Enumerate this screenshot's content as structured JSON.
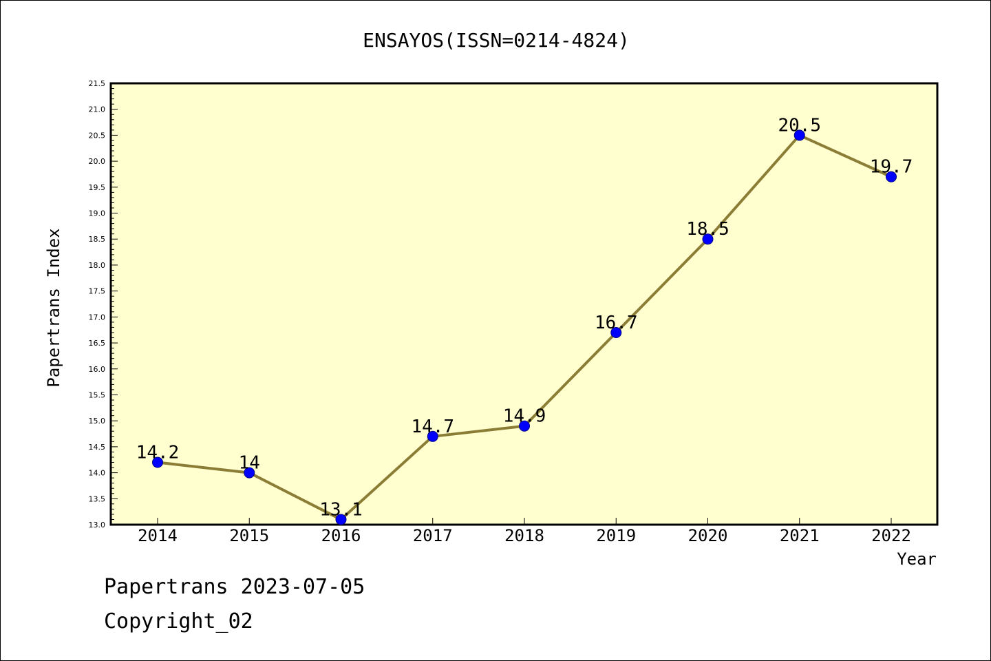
{
  "chart_data": {
    "type": "line",
    "title": "ENSAYOS(ISSN=0214-4824)",
    "xlabel": "Year",
    "ylabel": "Papertrans Index",
    "x": [
      "2014",
      "2015",
      "2016",
      "2017",
      "2018",
      "2019",
      "2020",
      "2021",
      "2022"
    ],
    "series": [
      {
        "values": [
          14.2,
          14.0,
          13.1,
          14.7,
          14.9,
          16.7,
          18.5,
          20.5,
          19.7
        ],
        "data_labels": [
          "14.2",
          "14",
          "13.1",
          "14.7",
          "14.9",
          "16.7",
          "18.5",
          "20.5",
          "19.7"
        ],
        "line_color": "#8b7d36",
        "marker_color": "#0000ff"
      }
    ],
    "ylim": [
      13.0,
      21.5
    ],
    "yticks": [
      "13.0",
      "13.5",
      "14.0",
      "14.5",
      "15.0",
      "15.5",
      "16.0",
      "16.5",
      "17.0",
      "17.5",
      "18.0",
      "18.5",
      "19.0",
      "19.5",
      "20.0",
      "20.5",
      "21.0",
      "21.5"
    ],
    "grid": false,
    "plot_background": "#ffffd0"
  },
  "footer": {
    "date_text": "Papertrans 2023-07-05",
    "copyright_text": "Copyright_02"
  }
}
